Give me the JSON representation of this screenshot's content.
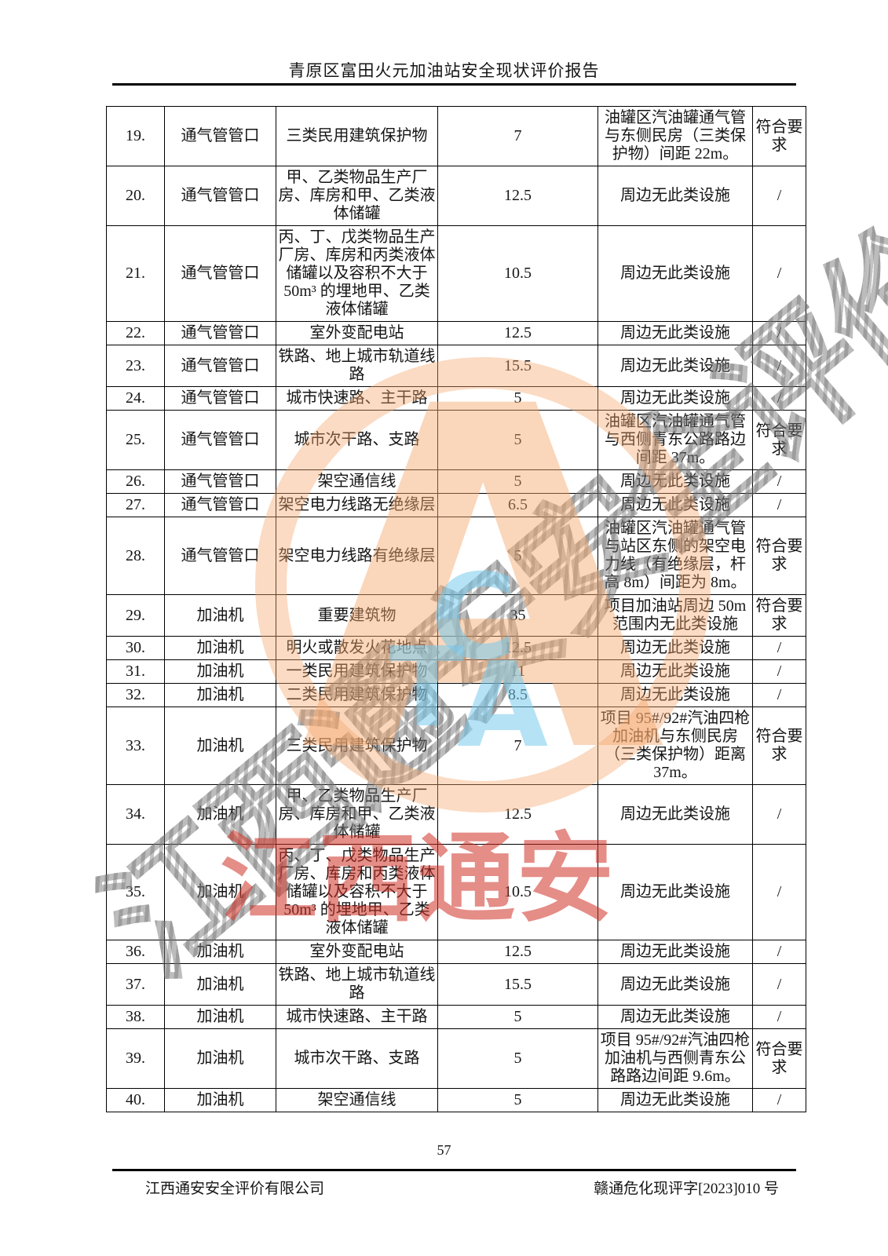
{
  "page": {
    "header_title": "青原区富田火元加油站安全现状评价报告",
    "page_number": "57",
    "footer_left": "江西通安安全评价有限公司",
    "footer_right": "赣通危化现评字[2023]010 号"
  },
  "table": {
    "rows": [
      {
        "no": "19.",
        "item": "通气管管口",
        "object": "三类民用建筑保护物",
        "distance": "7",
        "status": "油罐区汽油罐通气管与东侧民房（三类保护物）间距 22m。",
        "conclusion": "符合要求"
      },
      {
        "no": "20.",
        "item": "通气管管口",
        "object": "甲、乙类物品生产厂房、库房和甲、乙类液体储罐",
        "distance": "12.5",
        "status": "周边无此类设施",
        "conclusion": "/"
      },
      {
        "no": "21.",
        "item": "通气管管口",
        "object": "丙、丁、戊类物品生产厂房、库房和丙类液体储罐以及容积不大于 50m³ 的埋地甲、乙类液体储罐",
        "distance": "10.5",
        "status": "周边无此类设施",
        "conclusion": "/"
      },
      {
        "no": "22.",
        "item": "通气管管口",
        "object": "室外变配电站",
        "distance": "12.5",
        "status": "周边无此类设施",
        "conclusion": "/"
      },
      {
        "no": "23.",
        "item": "通气管管口",
        "object": "铁路、地上城市轨道线路",
        "distance": "15.5",
        "status": "周边无此类设施",
        "conclusion": "/"
      },
      {
        "no": "24.",
        "item": "通气管管口",
        "object": "城市快速路、主干路",
        "distance": "5",
        "status": "周边无此类设施",
        "conclusion": "/"
      },
      {
        "no": "25.",
        "item": "通气管管口",
        "object": "城市次干路、支路",
        "distance": "5",
        "status": "油罐区汽油罐通气管与西侧青东公路路边间距 37m。",
        "conclusion": "符合要求"
      },
      {
        "no": "26.",
        "item": "通气管管口",
        "object": "架空通信线",
        "distance": "5",
        "status": "周边无此类设施",
        "conclusion": "/"
      },
      {
        "no": "27.",
        "item": "通气管管口",
        "object": "架空电力线路无绝缘层",
        "distance": "6.5",
        "status": "周边无此类设施",
        "conclusion": "/"
      },
      {
        "no": "28.",
        "item": "通气管管口",
        "object": "架空电力线路有绝缘层",
        "distance": "5",
        "status": "油罐区汽油罐通气管与站区东侧的架空电力线（有绝缘层，杆高 8m）间距为 8m。",
        "conclusion": "符合要求"
      },
      {
        "no": "29.",
        "item": "加油机",
        "object": "重要建筑物",
        "distance": "35",
        "status": "项目加油站周边 50m 范围内无此类设施",
        "conclusion": "符合要求"
      },
      {
        "no": "30.",
        "item": "加油机",
        "object": "明火或散发火花地点",
        "distance": "12.5",
        "status": "周边无此类设施",
        "conclusion": "/"
      },
      {
        "no": "31.",
        "item": "加油机",
        "object": "一类民用建筑保护物",
        "distance": "11",
        "status": "周边无此类设施",
        "conclusion": "/"
      },
      {
        "no": "32.",
        "item": "加油机",
        "object": "二类民用建筑保护物",
        "distance": "8.5",
        "status": "周边无此类设施",
        "conclusion": "/"
      },
      {
        "no": "33.",
        "item": "加油机",
        "object": "三类民用建筑保护物",
        "distance": "7",
        "status": "项目 95#/92#汽油四枪加油机与东侧民房（三类保护物）距离 37m。",
        "conclusion": "符合要求"
      },
      {
        "no": "34.",
        "item": "加油机",
        "object": "甲、乙类物品生产厂房、库房和甲、乙类液体储罐",
        "distance": "12.5",
        "status": "周边无此类设施",
        "conclusion": "/"
      },
      {
        "no": "35.",
        "item": "加油机",
        "object": "丙、丁、戊类物品生产厂房、库房和丙类液体储罐以及容积不大于 50m³ 的埋地甲、乙类液体储罐",
        "distance": "10.5",
        "status": "周边无此类设施",
        "conclusion": "/"
      },
      {
        "no": "36.",
        "item": "加油机",
        "object": "室外变配电站",
        "distance": "12.5",
        "status": "周边无此类设施",
        "conclusion": "/"
      },
      {
        "no": "37.",
        "item": "加油机",
        "object": "铁路、地上城市轨道线路",
        "distance": "15.5",
        "status": "周边无此类设施",
        "conclusion": "/"
      },
      {
        "no": "38.",
        "item": "加油机",
        "object": "城市快速路、主干路",
        "distance": "5",
        "status": "周边无此类设施",
        "conclusion": "/"
      },
      {
        "no": "39.",
        "item": "加油机",
        "object": "城市次干路、支路",
        "distance": "5",
        "status": "项目 95#/92#汽油四枪加油机与西侧青东公路路边间距 9.6m。",
        "conclusion": "符合要求"
      },
      {
        "no": "40.",
        "item": "加油机",
        "object": "架空通信线",
        "distance": "5",
        "status": "周边无此类设施",
        "conclusion": "/"
      }
    ]
  },
  "watermark": {
    "diagonal_text": "江西通安安全评价有限公司",
    "red_text": "江西通安",
    "blue_letter_c": "C",
    "blue_letter_t": "T",
    "blue_letter_a": "A",
    "logo_letter": "A",
    "red_color": "#d03024",
    "orange_color": "#f5a66a",
    "gray_color": "#737373",
    "blue_color": "#78caec"
  }
}
